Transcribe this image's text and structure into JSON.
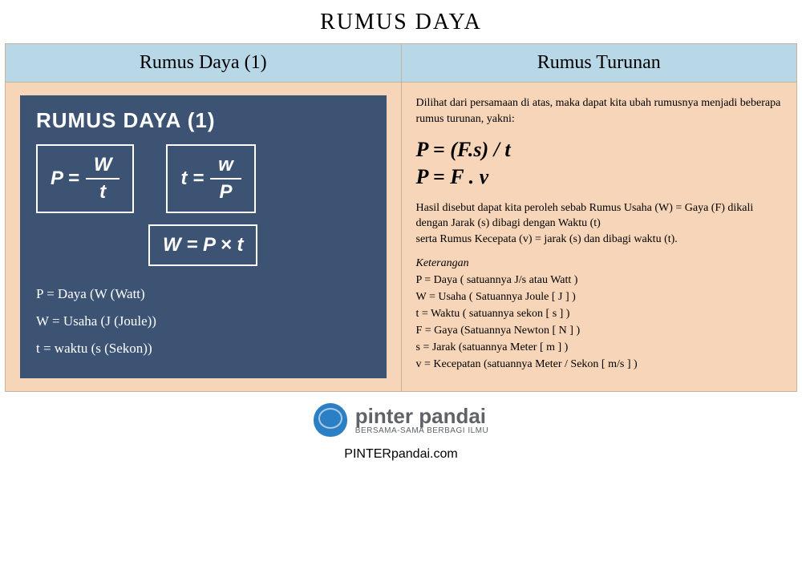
{
  "title": "RUMUS DAYA",
  "columns": {
    "left_header": "Rumus Daya (1)",
    "right_header": "Rumus Turunan"
  },
  "left_card": {
    "bg_color": "#3c5373",
    "text_color": "#ffffff",
    "title": "RUMUS DAYA (1)",
    "formula1": {
      "lhs": "P =",
      "num": "W",
      "den": "t"
    },
    "formula2": {
      "lhs": "t =",
      "num": "w",
      "den": "P"
    },
    "formula3": "W = P × t",
    "legend": [
      "P = Daya (W (Watt)",
      "W = Usaha (J (Joule))",
      "t = waktu (s (Sekon))"
    ]
  },
  "right_col": {
    "intro": "Dilihat dari persamaan di atas, maka dapat kita ubah rumusnya menjadi beberapa rumus turunan, yakni:",
    "formulas": [
      "P = (F.s) / t",
      "P = F . v"
    ],
    "explain": "Hasil disebut dapat kita peroleh sebab Rumus Usaha (W) = Gaya (F) dikali dengan Jarak (s) dibagi dengan Waktu (t)\nserta Rumus Kecepata (v) = jarak (s) dan dibagi waktu (t).",
    "ket_title": "Keterangan",
    "ket": [
      "P = Daya ( satuannya J/s atau Watt )",
      "W = Usaha ( Satuannya Joule [ J ] )",
      "t = Waktu ( satuannya sekon [ s ] )",
      "F = Gaya (Satuannya Newton [ N ] )",
      "s = Jarak (satuannya Meter [ m ] )",
      "v = Kecepatan (satuannya Meter / Sekon [ m/s ] )"
    ]
  },
  "footer": {
    "brand": "pinter pandai",
    "tagline": "BERSAMA-SAMA BERBAGI ILMU",
    "url": "PINTERpandai.com",
    "brand_color": "#5f6368",
    "icon_color": "#2b7fc4"
  },
  "palette": {
    "header_bg": "#b8d8e8",
    "body_bg": "#f6d5b8",
    "border": "#c7b29c"
  }
}
